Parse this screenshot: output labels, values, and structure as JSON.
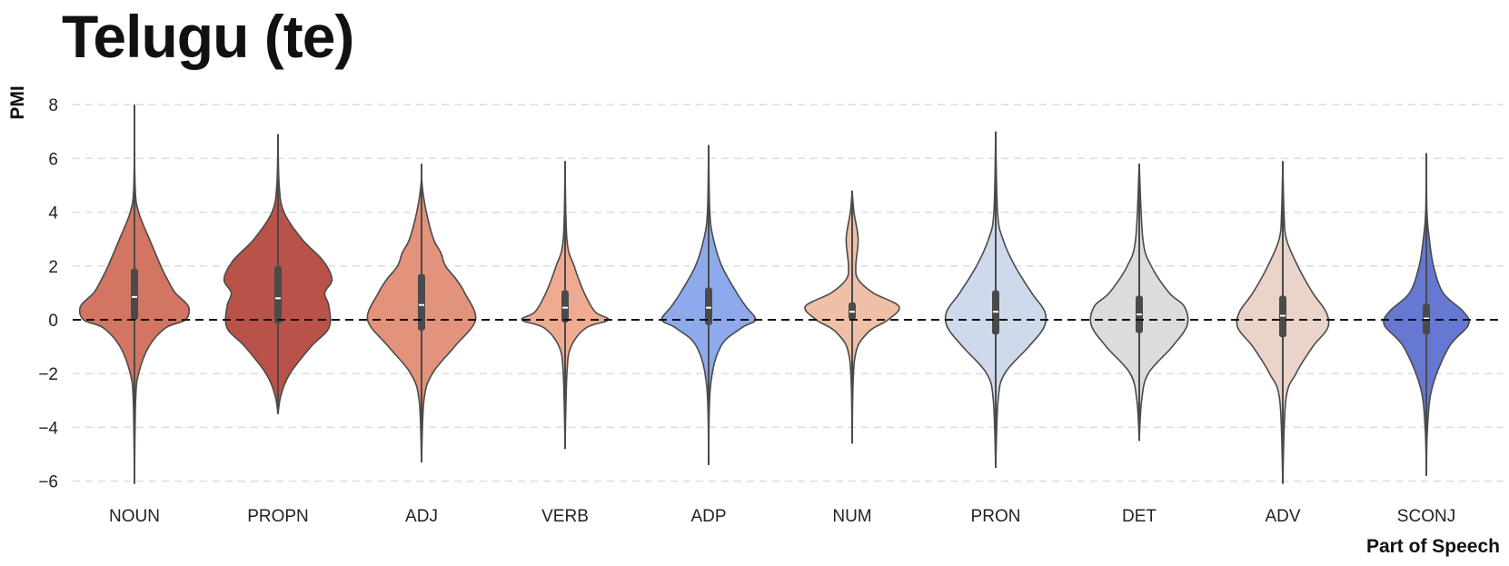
{
  "chart_data": {
    "type": "violin",
    "title": "Telugu (te)",
    "xlabel": "Part of Speech",
    "ylabel": "PMI",
    "ylim": [
      -6.3,
      8.3
    ],
    "yticks": [
      8,
      6,
      4,
      2,
      0,
      -2,
      -4,
      -6
    ],
    "grid": true,
    "reference_line": 0,
    "categories": [
      "NOUN",
      "PROPN",
      "ADJ",
      "VERB",
      "ADP",
      "NUM",
      "PRON",
      "DET",
      "ADV",
      "SCONJ"
    ],
    "colors": [
      "#d27563",
      "#b9534a",
      "#e3937b",
      "#eeab91",
      "#8ea9ec",
      "#efc0a7",
      "#cfd9ec",
      "#dedcdb",
      "#ead3c9",
      "#6678d2"
    ],
    "violins": [
      {
        "min": -6.1,
        "max": 8.0,
        "q1": 0.0,
        "median": 0.85,
        "q3": 1.9,
        "profile": [
          [
            -6.1,
            0.0
          ],
          [
            -3.0,
            0.02
          ],
          [
            -2.0,
            0.07
          ],
          [
            -1.0,
            0.24
          ],
          [
            -0.3,
            0.52
          ],
          [
            0.0,
            0.85
          ],
          [
            0.5,
            0.9
          ],
          [
            1.0,
            0.68
          ],
          [
            1.5,
            0.55
          ],
          [
            2.0,
            0.44
          ],
          [
            3.0,
            0.25
          ],
          [
            4.0,
            0.07
          ],
          [
            5.0,
            0.01
          ],
          [
            8.0,
            0.0
          ]
        ]
      },
      {
        "min": -3.5,
        "max": 6.9,
        "q1": -0.15,
        "median": 0.8,
        "q3": 2.0,
        "profile": [
          [
            -3.5,
            0.0
          ],
          [
            -2.8,
            0.05
          ],
          [
            -2.0,
            0.2
          ],
          [
            -1.0,
            0.55
          ],
          [
            -0.3,
            0.85
          ],
          [
            0.5,
            0.85
          ],
          [
            1.0,
            0.78
          ],
          [
            1.5,
            0.9
          ],
          [
            2.2,
            0.75
          ],
          [
            3.0,
            0.4
          ],
          [
            4.0,
            0.1
          ],
          [
            5.0,
            0.02
          ],
          [
            6.9,
            0.0
          ]
        ]
      },
      {
        "min": -5.3,
        "max": 5.8,
        "q1": -0.4,
        "median": 0.55,
        "q3": 1.7,
        "profile": [
          [
            -5.3,
            0.0
          ],
          [
            -3.0,
            0.04
          ],
          [
            -2.0,
            0.18
          ],
          [
            -1.0,
            0.55
          ],
          [
            0.0,
            0.9
          ],
          [
            1.0,
            0.72
          ],
          [
            1.5,
            0.58
          ],
          [
            2.0,
            0.4
          ],
          [
            2.5,
            0.32
          ],
          [
            3.0,
            0.2
          ],
          [
            4.0,
            0.08
          ],
          [
            5.0,
            0.01
          ],
          [
            5.8,
            0.0
          ]
        ]
      },
      {
        "min": -4.8,
        "max": 5.9,
        "q1": -0.1,
        "median": 0.45,
        "q3": 1.1,
        "profile": [
          [
            -4.8,
            0.0
          ],
          [
            -2.0,
            0.03
          ],
          [
            -1.0,
            0.1
          ],
          [
            -0.3,
            0.35
          ],
          [
            0.0,
            0.72
          ],
          [
            0.3,
            0.5
          ],
          [
            1.0,
            0.32
          ],
          [
            2.0,
            0.15
          ],
          [
            3.0,
            0.03
          ],
          [
            5.9,
            0.0
          ]
        ]
      },
      {
        "min": -5.4,
        "max": 6.5,
        "q1": -0.2,
        "median": 0.45,
        "q3": 1.2,
        "profile": [
          [
            -5.4,
            0.0
          ],
          [
            -2.5,
            0.03
          ],
          [
            -1.0,
            0.2
          ],
          [
            -0.3,
            0.55
          ],
          [
            0.0,
            0.78
          ],
          [
            0.5,
            0.62
          ],
          [
            1.0,
            0.47
          ],
          [
            2.0,
            0.22
          ],
          [
            3.0,
            0.08
          ],
          [
            4.0,
            0.02
          ],
          [
            6.5,
            0.0
          ]
        ]
      },
      {
        "min": -4.6,
        "max": 4.8,
        "q1": 0.0,
        "median": 0.3,
        "q3": 0.65,
        "profile": [
          [
            -4.6,
            0.0
          ],
          [
            -1.5,
            0.04
          ],
          [
            -0.5,
            0.25
          ],
          [
            0.0,
            0.6
          ],
          [
            0.5,
            0.78
          ],
          [
            1.0,
            0.35
          ],
          [
            1.5,
            0.1
          ],
          [
            2.0,
            0.06
          ],
          [
            3.0,
            0.1
          ],
          [
            4.0,
            0.03
          ],
          [
            4.8,
            0.0
          ]
        ]
      },
      {
        "min": -5.5,
        "max": 7.0,
        "q1": -0.55,
        "median": 0.3,
        "q3": 1.1,
        "profile": [
          [
            -5.5,
            0.0
          ],
          [
            -3.0,
            0.04
          ],
          [
            -2.0,
            0.15
          ],
          [
            -1.0,
            0.55
          ],
          [
            -0.3,
            0.8
          ],
          [
            0.3,
            0.82
          ],
          [
            1.0,
            0.6
          ],
          [
            2.0,
            0.32
          ],
          [
            3.0,
            0.12
          ],
          [
            4.0,
            0.03
          ],
          [
            7.0,
            0.0
          ]
        ]
      },
      {
        "min": -4.5,
        "max": 5.8,
        "q1": -0.5,
        "median": 0.2,
        "q3": 0.9,
        "profile": [
          [
            -4.5,
            0.0
          ],
          [
            -3.0,
            0.04
          ],
          [
            -2.0,
            0.15
          ],
          [
            -1.0,
            0.55
          ],
          [
            -0.2,
            0.8
          ],
          [
            0.5,
            0.75
          ],
          [
            1.0,
            0.5
          ],
          [
            2.0,
            0.2
          ],
          [
            3.0,
            0.06
          ],
          [
            5.8,
            0.0
          ]
        ]
      },
      {
        "min": -6.1,
        "max": 5.9,
        "q1": -0.65,
        "median": 0.15,
        "q3": 0.9,
        "profile": [
          [
            -6.1,
            0.0
          ],
          [
            -3.0,
            0.05
          ],
          [
            -2.0,
            0.22
          ],
          [
            -1.0,
            0.5
          ],
          [
            -0.3,
            0.75
          ],
          [
            0.3,
            0.72
          ],
          [
            1.0,
            0.5
          ],
          [
            2.0,
            0.25
          ],
          [
            3.0,
            0.06
          ],
          [
            4.0,
            0.02
          ],
          [
            5.9,
            0.0
          ]
        ]
      },
      {
        "min": -5.8,
        "max": 6.2,
        "q1": -0.55,
        "median": 0.05,
        "q3": 0.6,
        "profile": [
          [
            -5.8,
            0.0
          ],
          [
            -4.0,
            0.02
          ],
          [
            -2.5,
            0.1
          ],
          [
            -1.0,
            0.38
          ],
          [
            -0.2,
            0.7
          ],
          [
            0.3,
            0.62
          ],
          [
            1.0,
            0.28
          ],
          [
            2.0,
            0.12
          ],
          [
            3.0,
            0.05
          ],
          [
            4.0,
            0.01
          ],
          [
            6.2,
            0.0
          ]
        ]
      }
    ]
  }
}
